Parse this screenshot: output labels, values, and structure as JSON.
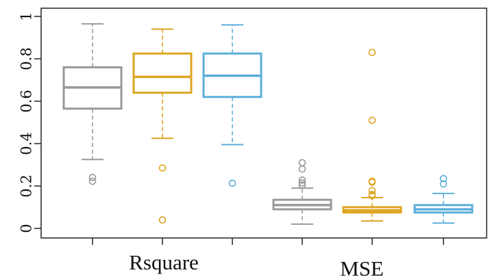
{
  "chart_data": {
    "type": "box",
    "title": "",
    "xlabel": "",
    "ylabel": "",
    "ylim": [
      -0.04,
      1.03
    ],
    "yticks": [
      0,
      0.2,
      0.4,
      0.6,
      0.8,
      1
    ],
    "ytick_labels": [
      "0",
      "0.2",
      "0.4",
      "0.6",
      "0.8",
      "1"
    ],
    "groups": [
      {
        "label": "Rsquare",
        "box_indices": [
          0,
          1,
          2
        ]
      },
      {
        "label": "MSE",
        "box_indices": [
          3,
          4,
          5
        ]
      }
    ],
    "series_colors": [
      "#999999",
      "#DDA520",
      "#5BAFDA"
    ],
    "boxes": [
      {
        "group": "Rsquare",
        "series": 0,
        "whisker_low": 0.325,
        "q1": 0.565,
        "median": 0.665,
        "q3": 0.76,
        "whisker_high": 0.965,
        "outliers": [
          0.222,
          0.24
        ]
      },
      {
        "group": "Rsquare",
        "series": 1,
        "whisker_low": 0.425,
        "q1": 0.64,
        "median": 0.715,
        "q3": 0.825,
        "whisker_high": 0.94,
        "outliers": [
          0.285,
          0.04
        ]
      },
      {
        "group": "Rsquare",
        "series": 2,
        "whisker_low": 0.395,
        "q1": 0.62,
        "median": 0.72,
        "q3": 0.825,
        "whisker_high": 0.96,
        "outliers": [
          0.213
        ]
      },
      {
        "group": "MSE",
        "series": 0,
        "whisker_low": 0.02,
        "q1": 0.09,
        "median": 0.11,
        "q3": 0.135,
        "whisker_high": 0.19,
        "outliers": [
          0.205,
          0.215,
          0.228,
          0.28,
          0.31
        ]
      },
      {
        "group": "MSE",
        "series": 1,
        "whisker_low": 0.035,
        "q1": 0.075,
        "median": 0.085,
        "q3": 0.1,
        "whisker_high": 0.145,
        "outliers": [
          0.155,
          0.16,
          0.178,
          0.218,
          0.222,
          0.51,
          0.83
        ]
      },
      {
        "group": "MSE",
        "series": 2,
        "whisker_low": 0.025,
        "q1": 0.075,
        "median": 0.09,
        "q3": 0.11,
        "whisker_high": 0.165,
        "outliers": [
          0.21,
          0.235
        ]
      }
    ]
  }
}
